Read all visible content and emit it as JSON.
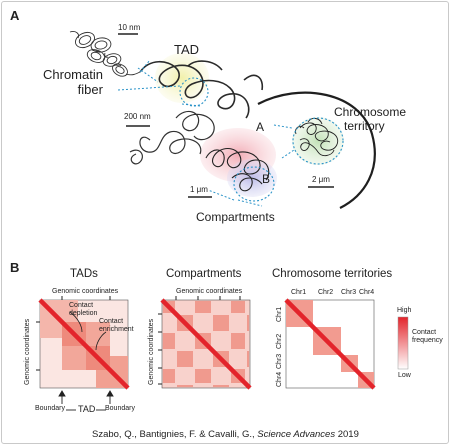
{
  "panelA": {
    "letter": "A",
    "scale_10nm": "10 nm",
    "tad": "TAD",
    "chromatin_fiber_line1": "Chromatin",
    "chromatin_fiber_line2": "fiber",
    "scale_200nm": "200 nm",
    "compartment_a": "A",
    "compartment_b": "B",
    "chromosome_territory_line1": "Chromosome",
    "chromosome_territory_line2": "territory",
    "scale_2um": "2 μm",
    "scale_1um": "1 μm",
    "compartments": "Compartments",
    "colors": {
      "tad": "#f3f2b8",
      "a": "#f5b8c0",
      "b": "#c6c6ec",
      "territory": "#cfe6c5",
      "dotted": "#2a93c8"
    }
  },
  "panelB": {
    "letter": "B",
    "tads": {
      "title": "TADs",
      "xlabel": "Genomic coordinates",
      "ylabel": "Genomic coordinates",
      "contact_depletion_line1": "Contact",
      "contact_depletion_line2": "depletion",
      "contact_enrichment_line1": "Contact",
      "contact_enrichment_line2": "enrichment",
      "boundary_left": "Boundary",
      "tad_label": "TAD",
      "boundary_right": "Boundary"
    },
    "compartments": {
      "title": "Compartments",
      "xlabel": "Genomic coordinates",
      "ylabel": "Genomic coordinates"
    },
    "territories": {
      "title": "Chromosome territories",
      "chromosomes": [
        "Chr1",
        "Chr2",
        "Chr3",
        "Chr4"
      ]
    },
    "colorbar": {
      "high": "High",
      "label_line1": "Contact",
      "label_line2": "frequency",
      "low": "Low",
      "color_high": "#e3242b"
    }
  },
  "citation": {
    "authors": "Szabo, Q., Bantignies, F. & Cavalli, G., ",
    "journal": "Science Advances",
    "year": " 2019"
  }
}
